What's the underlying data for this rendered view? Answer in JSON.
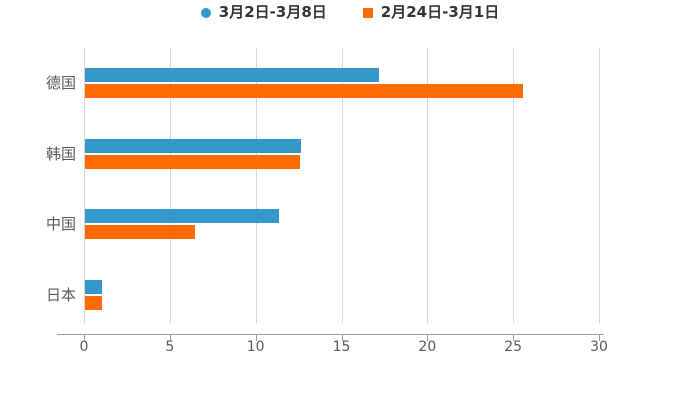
{
  "legend": {
    "items": [
      {
        "label": "3月2日-3月8日",
        "color": "#3498C8",
        "marker": "circle"
      },
      {
        "label": "2月24日-3月1日",
        "color": "#FF6B00",
        "marker": "square"
      }
    ]
  },
  "chart_data": {
    "type": "bar",
    "orientation": "horizontal",
    "title": "",
    "categories": [
      "德国",
      "韩国",
      "中国",
      "日本"
    ],
    "series": [
      {
        "name": "3月2日-3月8日",
        "color": "#3498C8",
        "values": [
          17.1,
          12.6,
          11.3,
          1.0
        ]
      },
      {
        "name": "2月24日-3月1日",
        "color": "#FF6B00",
        "values": [
          25.5,
          12.5,
          6.4,
          1.0
        ]
      }
    ],
    "xlim": [
      0,
      30
    ],
    "xticks": [
      0,
      5,
      10,
      15,
      20,
      25,
      30
    ],
    "grid": true,
    "legend_position": "top-center"
  },
  "colors": {
    "grid": "#D6D6D6",
    "axis": "#9B9B9B",
    "tick_label": "#595959",
    "category_label": "#595959",
    "legend_text": "#333333",
    "background": "#FFFFFF"
  }
}
